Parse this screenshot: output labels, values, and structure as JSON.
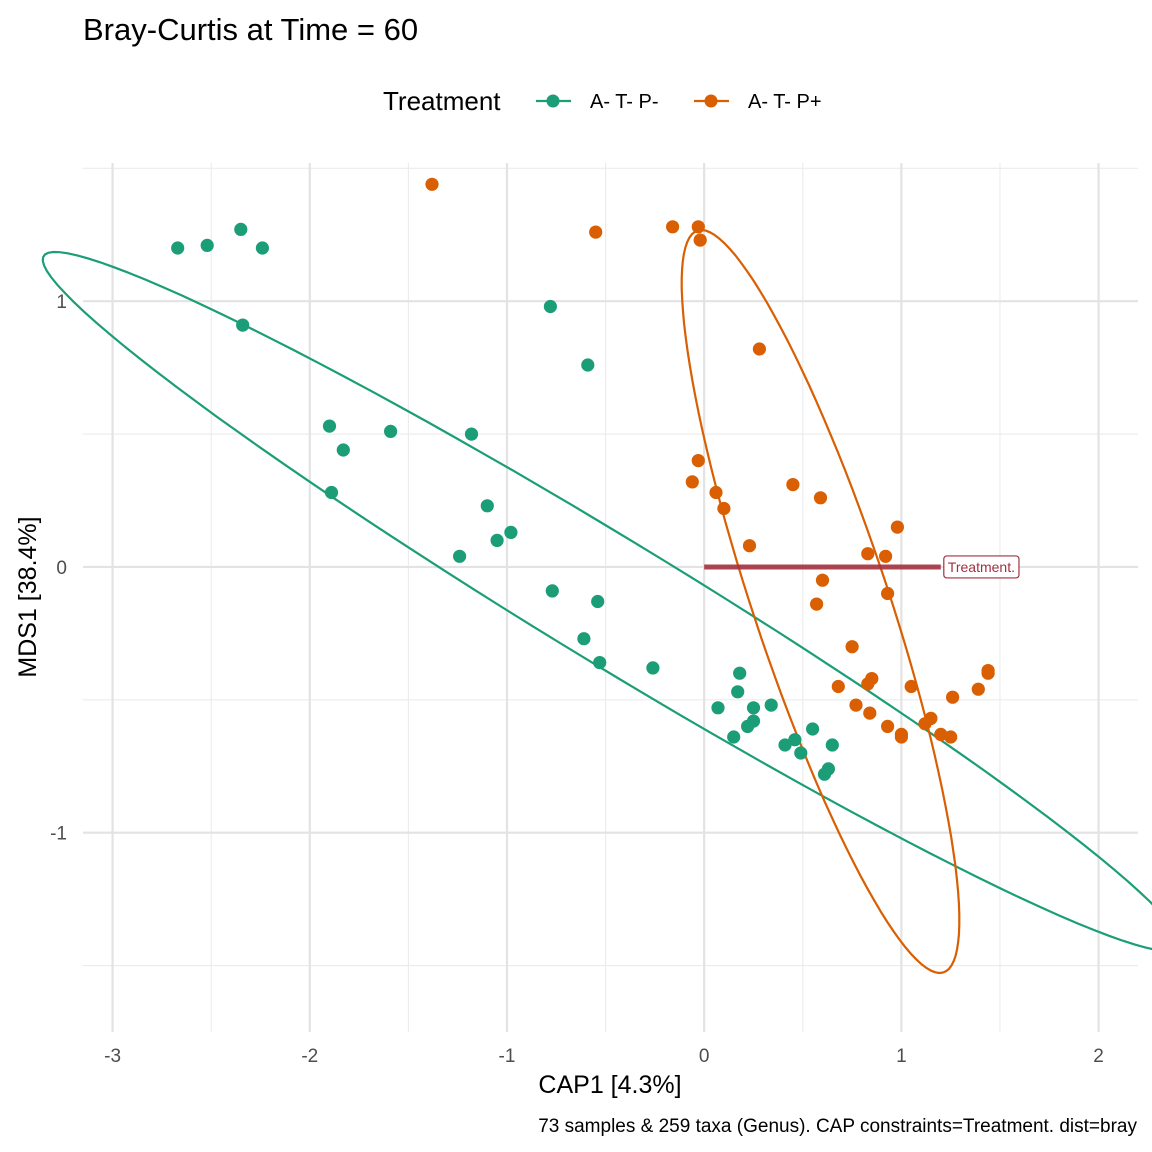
{
  "chart_data": {
    "type": "scatter",
    "title": "Bray-Curtis at Time = 60",
    "xlabel": "CAP1 [4.3%]",
    "ylabel": "MDS1 [38.4%]",
    "caption": "73 samples & 259 taxa (Genus). CAP constraints=Treatment. dist=bray",
    "xlim": [
      -3.15,
      2.2
    ],
    "ylim": [
      -1.75,
      1.52
    ],
    "x_ticks": [
      -3,
      -2,
      -1,
      0,
      1,
      2
    ],
    "x_tick_labels": [
      "-3",
      "-2",
      "-1",
      "0",
      "1",
      "2"
    ],
    "y_ticks": [
      -1,
      0,
      1
    ],
    "y_tick_labels": [
      "-1",
      "0",
      "1"
    ],
    "grid": true,
    "legend": {
      "title": "Treatment",
      "position": "top",
      "entries": [
        "A- T- P-",
        "A- T- P+"
      ]
    },
    "series": [
      {
        "name": "A- T- P-",
        "color": "#1b9e77",
        "points": [
          [
            -2.67,
            1.2
          ],
          [
            -2.52,
            1.21
          ],
          [
            -2.35,
            1.27
          ],
          [
            -2.24,
            1.2
          ],
          [
            -2.34,
            0.91
          ],
          [
            -0.78,
            0.98
          ],
          [
            -0.59,
            0.76
          ],
          [
            -1.9,
            0.53
          ],
          [
            -1.83,
            0.44
          ],
          [
            -1.89,
            0.28
          ],
          [
            -1.59,
            0.51
          ],
          [
            -1.18,
            0.5
          ],
          [
            -1.1,
            0.23
          ],
          [
            -1.05,
            0.1
          ],
          [
            -0.98,
            0.13
          ],
          [
            -1.24,
            0.04
          ],
          [
            -0.77,
            -0.09
          ],
          [
            -0.54,
            -0.13
          ],
          [
            -0.61,
            -0.27
          ],
          [
            -0.53,
            -0.36
          ],
          [
            -0.26,
            -0.38
          ],
          [
            0.18,
            -0.4
          ],
          [
            0.17,
            -0.47
          ],
          [
            0.07,
            -0.53
          ],
          [
            0.15,
            -0.64
          ],
          [
            0.22,
            -0.6
          ],
          [
            0.25,
            -0.53
          ],
          [
            0.25,
            -0.58
          ],
          [
            0.34,
            -0.52
          ],
          [
            0.41,
            -0.67
          ],
          [
            0.46,
            -0.65
          ],
          [
            0.49,
            -0.7
          ],
          [
            0.55,
            -0.61
          ],
          [
            0.61,
            -0.78
          ],
          [
            0.63,
            -0.76
          ],
          [
            0.65,
            -0.67
          ]
        ]
      },
      {
        "name": "A- T- P+",
        "color": "#d95f02",
        "points": [
          [
            -1.38,
            1.44
          ],
          [
            -0.55,
            1.26
          ],
          [
            -0.16,
            1.28
          ],
          [
            -0.03,
            1.28
          ],
          [
            -0.02,
            1.23
          ],
          [
            0.28,
            0.82
          ],
          [
            -0.03,
            0.4
          ],
          [
            -0.06,
            0.32
          ],
          [
            0.06,
            0.28
          ],
          [
            0.1,
            0.22
          ],
          [
            0.23,
            0.08
          ],
          [
            0.45,
            0.31
          ],
          [
            0.59,
            0.26
          ],
          [
            0.98,
            0.15
          ],
          [
            0.83,
            0.05
          ],
          [
            0.92,
            0.04
          ],
          [
            0.6,
            -0.05
          ],
          [
            0.57,
            -0.14
          ],
          [
            0.93,
            -0.1
          ],
          [
            0.75,
            -0.3
          ],
          [
            0.68,
            -0.45
          ],
          [
            0.85,
            -0.42
          ],
          [
            0.83,
            -0.44
          ],
          [
            0.77,
            -0.52
          ],
          [
            0.84,
            -0.55
          ],
          [
            0.93,
            -0.6
          ],
          [
            1.0,
            -0.63
          ],
          [
            1.0,
            -0.64
          ],
          [
            1.05,
            -0.45
          ],
          [
            1.12,
            -0.59
          ],
          [
            1.15,
            -0.57
          ],
          [
            1.2,
            -0.63
          ],
          [
            1.25,
            -0.64
          ],
          [
            1.26,
            -0.49
          ],
          [
            1.39,
            -0.46
          ],
          [
            1.44,
            -0.4
          ],
          [
            1.44,
            -0.39
          ]
        ]
      }
    ],
    "ellipses": [
      {
        "series": "A- T- P-",
        "color": "#1b9e77",
        "center": [
          -0.47,
          -0.13
        ],
        "a": 3.16,
        "b": 0.25,
        "angle_deg": -24.2
      },
      {
        "series": "A- T- P+",
        "color": "#d95f02",
        "center": [
          0.59,
          -0.13
        ],
        "a": 1.53,
        "b": 0.33,
        "angle_deg": -65.4
      }
    ],
    "arrow": {
      "label": "Treatment.",
      "from": [
        0,
        0
      ],
      "to": [
        1.2,
        0
      ],
      "color": "#a3303f"
    }
  }
}
